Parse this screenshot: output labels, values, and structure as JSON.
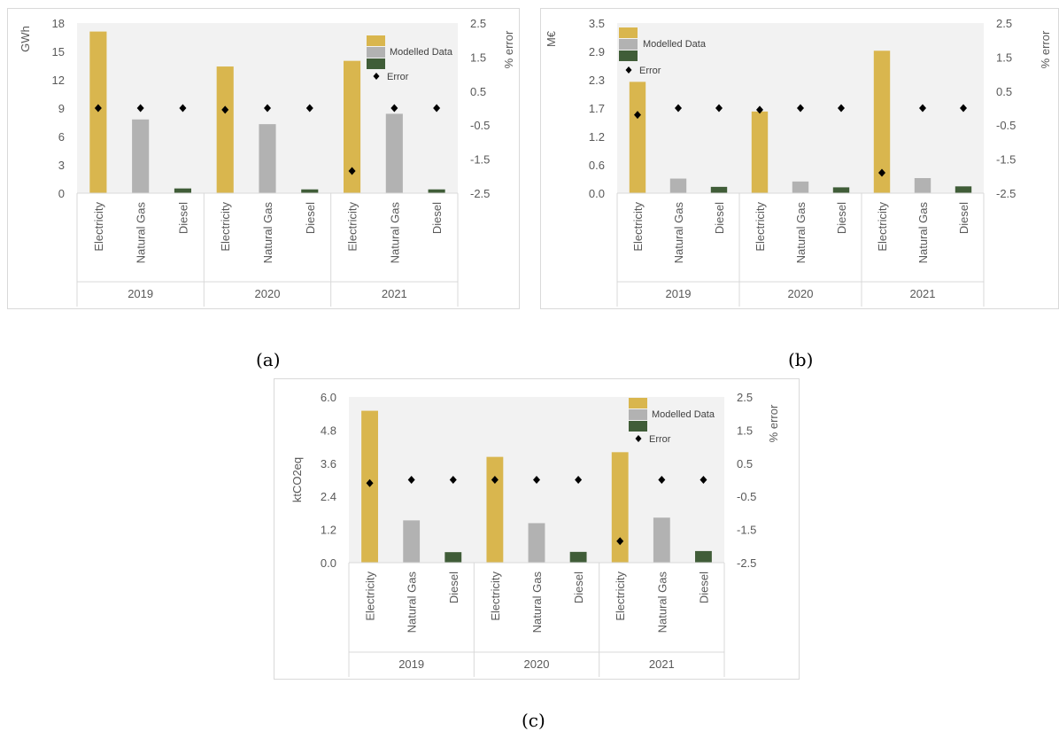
{
  "captions": {
    "a": "(a)",
    "b": "(b)",
    "c": "(c)"
  },
  "colors": {
    "electricity": "#d9b64e",
    "natural_gas": "#b2b2b2",
    "diesel": "#405d38",
    "error": "#000000",
    "plot_bg": "#f2f2f2",
    "axis_text": "#595959"
  },
  "chart_data": [
    {
      "type": "bar",
      "panel": "a",
      "ylabel": "GWh",
      "y2label": "% error",
      "ylim": [
        0,
        18
      ],
      "yticks": [
        "0",
        "3",
        "6",
        "9",
        "12",
        "15",
        "18"
      ],
      "y2lim": [
        -2.5,
        2.5
      ],
      "y2ticks": [
        "-2.5",
        "-1.5",
        "-0.5",
        "0.5",
        "1.5",
        "2.5"
      ],
      "groups": [
        "2019",
        "2020",
        "2021"
      ],
      "categories": [
        "Electricity",
        "Natural Gas",
        "Diesel"
      ],
      "values": [
        [
          17.1,
          7.8,
          0.5
        ],
        [
          13.4,
          7.3,
          0.4
        ],
        [
          14.0,
          8.4,
          0.4
        ]
      ],
      "error": [
        [
          0.0,
          0.0,
          0.0
        ],
        [
          -0.05,
          0.0,
          0.0
        ],
        [
          -1.85,
          0.0,
          0.0
        ]
      ],
      "legend": {
        "placement": "top-right",
        "series_label": "Modelled Data",
        "error_label": "Error"
      }
    },
    {
      "type": "bar",
      "panel": "b",
      "ylabel": "M€",
      "y2label": "% error",
      "ylim": [
        0,
        3.5
      ],
      "yticks": [
        "0.0",
        "0.6",
        "1.2",
        "1.7",
        "2.3",
        "2.9",
        "3.5"
      ],
      "y2lim": [
        -2.5,
        2.5
      ],
      "y2ticks": [
        "-2.5",
        "-1.5",
        "-0.5",
        "0.5",
        "1.5",
        "2.5"
      ],
      "groups": [
        "2019",
        "2020",
        "2021"
      ],
      "categories": [
        "Electricity",
        "Natural Gas",
        "Diesel"
      ],
      "values": [
        [
          2.29,
          0.3,
          0.13
        ],
        [
          1.68,
          0.24,
          0.12
        ],
        [
          2.93,
          0.31,
          0.14
        ]
      ],
      "error": [
        [
          -0.2,
          0.0,
          0.0
        ],
        [
          -0.05,
          0.0,
          0.0
        ],
        [
          -1.9,
          0.0,
          0.0
        ]
      ],
      "legend": {
        "placement": "top-left",
        "series_label": "Modelled Data",
        "error_label": "Error"
      }
    },
    {
      "type": "bar",
      "panel": "c",
      "ylabel": "ktCO2eq",
      "y2label": "% error",
      "ylim": [
        0,
        6
      ],
      "yticks": [
        "0.0",
        "1.2",
        "2.4",
        "3.6",
        "4.8",
        "6.0"
      ],
      "y2lim": [
        -2.5,
        2.5
      ],
      "y2ticks": [
        "-2.5",
        "-1.5",
        "-0.5",
        "0.5",
        "1.5",
        "2.5"
      ],
      "groups": [
        "2019",
        "2020",
        "2021"
      ],
      "categories": [
        "Electricity",
        "Natural Gas",
        "Diesel"
      ],
      "values": [
        [
          5.5,
          1.53,
          0.38
        ],
        [
          3.83,
          1.43,
          0.39
        ],
        [
          4.0,
          1.63,
          0.42
        ]
      ],
      "error": [
        [
          -0.1,
          0.0,
          0.0
        ],
        [
          0.0,
          0.0,
          0.0
        ],
        [
          -1.85,
          0.0,
          0.0
        ]
      ],
      "legend": {
        "placement": "top-right",
        "series_label": "Modelled Data",
        "error_label": "Error"
      }
    }
  ]
}
